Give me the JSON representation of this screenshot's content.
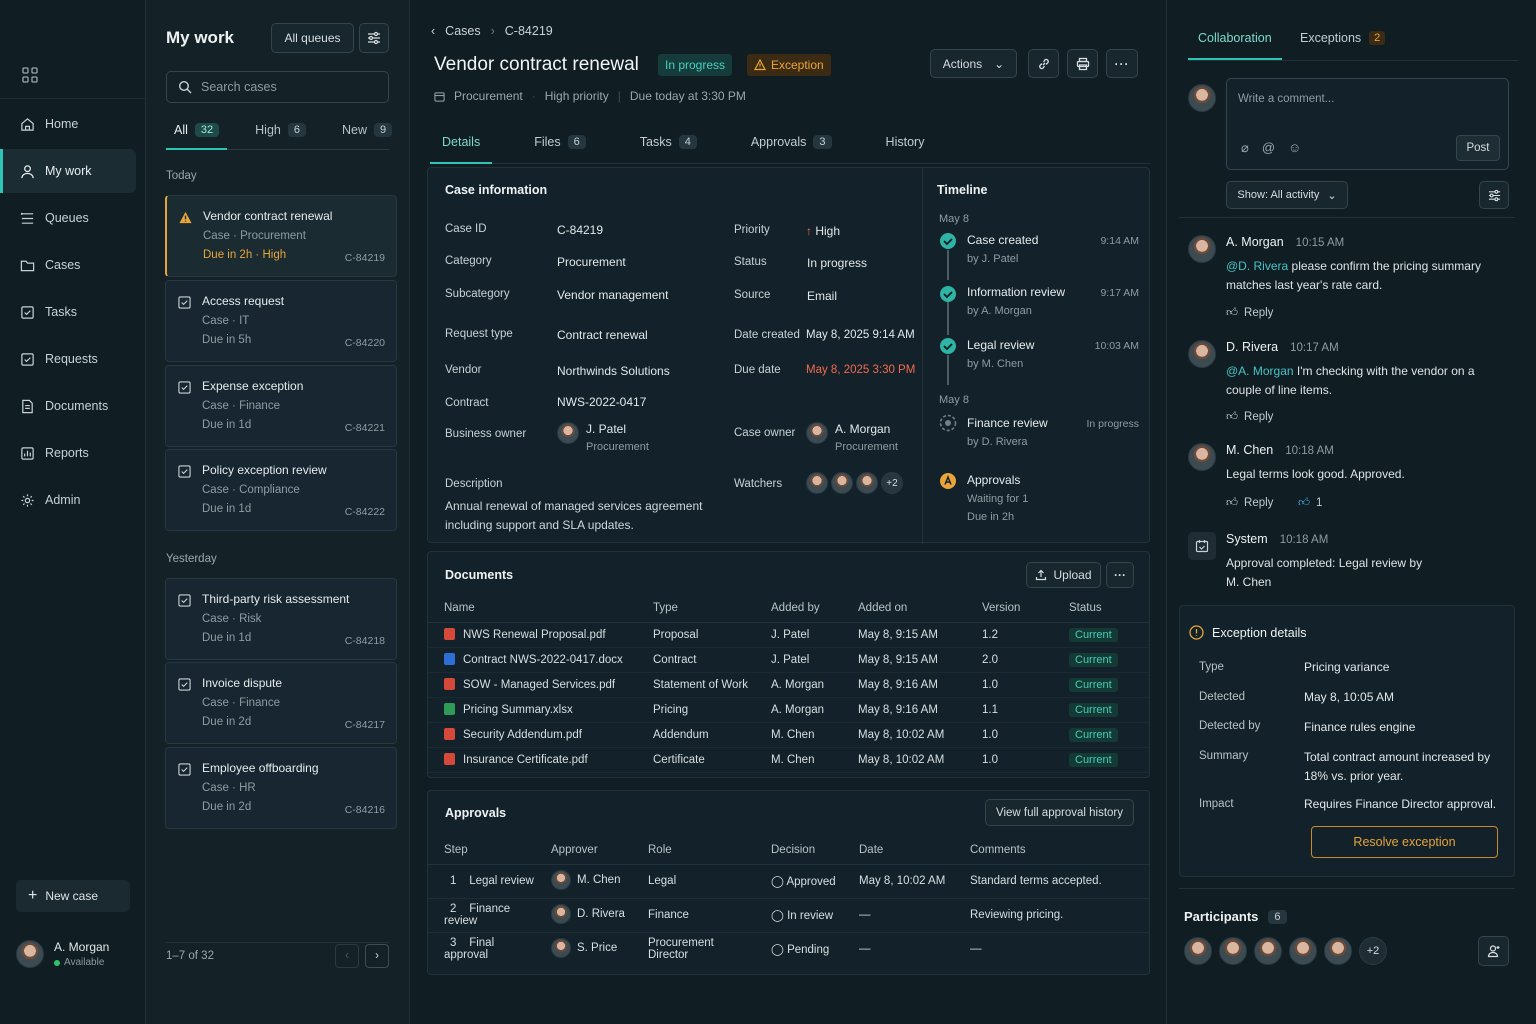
{
  "sidebar": {
    "items": [
      {
        "label": "Home",
        "icon": "home-icon"
      },
      {
        "label": "My work",
        "icon": "user-icon"
      },
      {
        "label": "Queues",
        "icon": "queue-icon"
      },
      {
        "label": "Cases",
        "icon": "folder-icon"
      },
      {
        "label": "Tasks",
        "icon": "checkbox-icon"
      },
      {
        "label": "Requests",
        "icon": "request-icon"
      },
      {
        "label": "Documents",
        "icon": "document-icon"
      },
      {
        "label": "Reports",
        "icon": "report-icon"
      },
      {
        "label": "Admin",
        "icon": "gear-icon"
      }
    ],
    "new_case": "New case",
    "user": {
      "name": "A. Morgan",
      "status": "Available"
    }
  },
  "worklist": {
    "title": "My work",
    "queues_btn": "All queues",
    "search_placeholder": "Search cases",
    "tabs": [
      {
        "label": "All",
        "count": "32"
      },
      {
        "label": "High",
        "count": "6"
      },
      {
        "label": "New",
        "count": "9"
      }
    ],
    "groups": [
      "Today",
      "Yesterday"
    ],
    "cards": [
      {
        "title": "Vendor contract renewal",
        "meta": "Case · Procurement",
        "due": "Due in 2h",
        "priority": "High",
        "id": "C-84219"
      },
      {
        "title": "Access request",
        "meta": "Case · IT",
        "due": "Due in 5h",
        "id": "C-84220"
      },
      {
        "title": "Expense exception",
        "meta": "Case · Finance",
        "due": "Due in 1d",
        "id": "C-84221"
      },
      {
        "title": "Policy exception review",
        "meta": "Case · Compliance",
        "due": "Due in 1d",
        "id": "C-84222"
      },
      {
        "title": "Third-party risk assessment",
        "meta": "Case · Risk",
        "due": "Due in 1d",
        "id": "C-84218"
      },
      {
        "title": "Invoice dispute",
        "meta": "Case · Finance",
        "due": "Due in 2d",
        "id": "C-84217"
      },
      {
        "title": "Employee offboarding",
        "meta": "Case · HR",
        "due": "Due in 2d",
        "id": "C-84216"
      }
    ],
    "pager": "1–7 of 32"
  },
  "case": {
    "breadcrumb": [
      "Cases",
      "C-84219"
    ],
    "title": "Vendor contract renewal",
    "status_pill": "In progress",
    "exception_pill": "Exception",
    "meta": [
      "Procurement",
      "High priority",
      "Due today at 3:30 PM"
    ],
    "actions_label": "Actions",
    "tabs": [
      {
        "label": "Details"
      },
      {
        "label": "Files",
        "count": "6"
      },
      {
        "label": "Tasks",
        "count": "4"
      },
      {
        "label": "Approvals",
        "count": "3"
      },
      {
        "label": "History"
      }
    ],
    "info_title": "Case information",
    "fields": {
      "case_id": {
        "k": "Case ID",
        "v": "C-84219"
      },
      "category": {
        "k": "Category",
        "v": "Procurement"
      },
      "subcategory": {
        "k": "Subcategory",
        "v": "Vendor management"
      },
      "request_type": {
        "k": "Request type",
        "v": "Contract renewal"
      },
      "vendor": {
        "k": "Vendor",
        "v": "Northwinds Solutions"
      },
      "contract": {
        "k": "Contract",
        "v": "NWS-2022-0417"
      },
      "business_owner": {
        "k": "Business owner",
        "v": "J. Patel",
        "sub": "Procurement"
      },
      "description": {
        "k": "Description",
        "v": "Annual renewal of managed services agreement including support and SLA updates."
      },
      "priority": {
        "k": "Priority",
        "v": "High"
      },
      "status": {
        "k": "Status",
        "v": "In progress"
      },
      "source": {
        "k": "Source",
        "v": "Email"
      },
      "date_created": {
        "k": "Date created",
        "v": "May 8, 2025 9:14 AM"
      },
      "due_date": {
        "k": "Due date",
        "v": "May 8, 2025 3:30 PM"
      },
      "case_owner": {
        "k": "Case owner",
        "v": "A. Morgan",
        "sub": "Procurement"
      },
      "watchers": {
        "k": "Watchers",
        "more": "+2"
      }
    },
    "timeline": {
      "title": "Timeline",
      "dates": [
        "May 8",
        "May 8"
      ],
      "items": [
        {
          "title": "Case created",
          "by": "by J. Patel",
          "time": "9:14 AM"
        },
        {
          "title": "Information review",
          "by": "by A. Morgan",
          "time": "9:17 AM"
        },
        {
          "title": "Legal review",
          "by": "by M. Chen",
          "time": "10:03 AM"
        },
        {
          "title": "Finance review",
          "by": "by D. Rivera",
          "time": "In progress"
        },
        {
          "title": "Approvals",
          "by": "Waiting for 1",
          "extra": "Due in 2h"
        }
      ]
    },
    "documents": {
      "title": "Documents",
      "upload": "Upload",
      "columns": [
        "Name",
        "Type",
        "Added by",
        "Added on",
        "Version",
        "Status"
      ],
      "rows": [
        {
          "name": "NWS Renewal Proposal.pdf",
          "kind": "pdf",
          "type": "Proposal",
          "by": "J. Patel",
          "on": "May 8, 9:15 AM",
          "ver": "1.2",
          "status": "Current"
        },
        {
          "name": "Contract NWS-2022-0417.docx",
          "kind": "doc",
          "type": "Contract",
          "by": "J. Patel",
          "on": "May 8, 9:15 AM",
          "ver": "2.0",
          "status": "Current"
        },
        {
          "name": "SOW - Managed Services.pdf",
          "kind": "pdf",
          "type": "Statement of Work",
          "by": "A. Morgan",
          "on": "May 8, 9:16 AM",
          "ver": "1.0",
          "status": "Current"
        },
        {
          "name": "Pricing Summary.xlsx",
          "kind": "xls",
          "type": "Pricing",
          "by": "A. Morgan",
          "on": "May 8, 9:16 AM",
          "ver": "1.1",
          "status": "Current"
        },
        {
          "name": "Security Addendum.pdf",
          "kind": "pdf",
          "type": "Addendum",
          "by": "M. Chen",
          "on": "May 8, 10:02 AM",
          "ver": "1.0",
          "status": "Current"
        },
        {
          "name": "Insurance Certificate.pdf",
          "kind": "pdf",
          "type": "Certificate",
          "by": "M. Chen",
          "on": "May 8, 10:02 AM",
          "ver": "1.0",
          "status": "Current"
        }
      ]
    },
    "approvals": {
      "title": "Approvals",
      "history_btn": "View full approval history",
      "columns": [
        "Step",
        "Approver",
        "Role",
        "Decision",
        "Date",
        "Comments"
      ],
      "rows": [
        {
          "step": "1",
          "name": "Legal review",
          "approver": "M. Chen",
          "role": "Legal",
          "decision": "Approved",
          "state": "ok",
          "date": "May 8, 10:02 AM",
          "comments": "Standard terms accepted."
        },
        {
          "step": "2",
          "name": "Finance review",
          "approver": "D. Rivera",
          "role": "Finance",
          "decision": "In review",
          "state": "rev",
          "date": "—",
          "comments": "Reviewing pricing."
        },
        {
          "step": "3",
          "name": "Final approval",
          "approver": "S. Price",
          "role": "Procurement Director",
          "decision": "Pending",
          "state": "pend",
          "date": "—",
          "comments": "—"
        }
      ]
    }
  },
  "collab": {
    "tabs": [
      {
        "label": "Collaboration"
      },
      {
        "label": "Exceptions",
        "count": "2"
      }
    ],
    "comment_placeholder": "Write a comment...",
    "post": "Post",
    "show": "Show: All activity",
    "comments": [
      {
        "name": "A. Morgan",
        "time": "10:15 AM",
        "mention": "@D. Rivera",
        "text": " please confirm the pricing summary matches last year's rate card.",
        "reply": "Reply"
      },
      {
        "name": "D. Rivera",
        "time": "10:17 AM",
        "mention": "@A. Morgan",
        "text": " I'm checking with the vendor on a couple of line items.",
        "reply": "Reply"
      },
      {
        "name": "M. Chen",
        "time": "10:18 AM",
        "mention": "",
        "text": "Legal terms look good. Approved.",
        "reply": "Reply",
        "likes": "1"
      },
      {
        "name": "System",
        "time": "10:18 AM",
        "mention": "",
        "text": "Approval completed: Legal review by M. Chen"
      }
    ],
    "exception": {
      "title": "Exception details",
      "rows": [
        {
          "k": "Type",
          "v": "Pricing variance"
        },
        {
          "k": "Detected",
          "v": "May 8, 10:05 AM"
        },
        {
          "k": "Detected by",
          "v": "Finance rules engine"
        },
        {
          "k": "Summary",
          "v": "Total contract amount increased by 18% vs. prior year."
        },
        {
          "k": "Impact",
          "v": "Requires Finance Director approval."
        }
      ],
      "resolve": "Resolve exception"
    },
    "participants": {
      "title": "Participants",
      "count": "6",
      "more": "+2"
    }
  }
}
